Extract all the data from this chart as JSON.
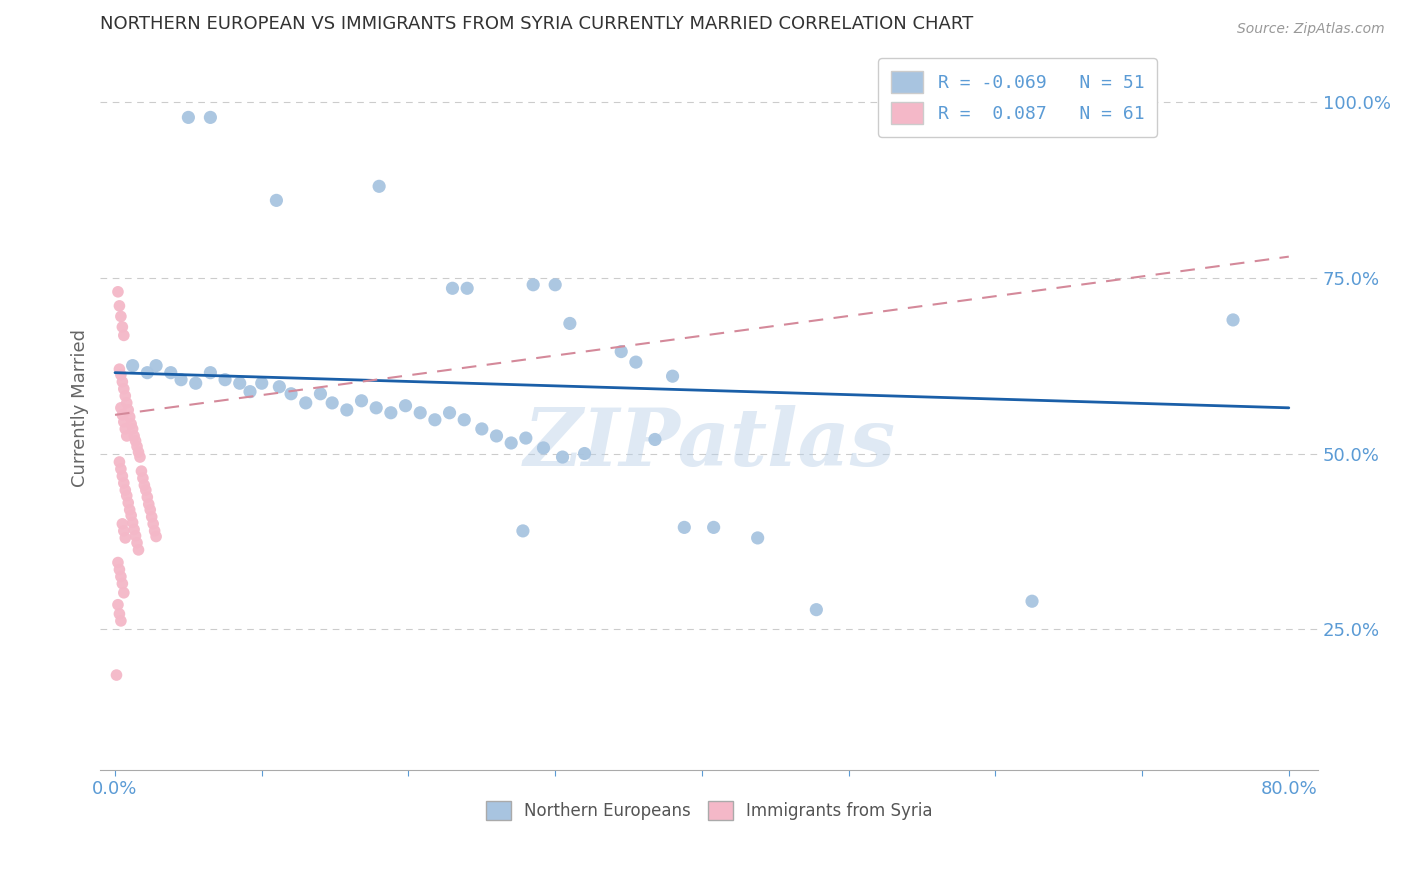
{
  "title": "NORTHERN EUROPEAN VS IMMIGRANTS FROM SYRIA CURRENTLY MARRIED CORRELATION CHART",
  "source": "Source: ZipAtlas.com",
  "ylabel": "Currently Married",
  "watermark": "ZIPatlas",
  "legend_r_blue": "R = -0.069",
  "legend_n_blue": "N = 51",
  "legend_r_pink": "R =  0.087",
  "legend_n_pink": "N = 61",
  "blue_color": "#a8c4e0",
  "pink_color": "#f4b8c8",
  "trendline_blue_color": "#1a5fa8",
  "trendline_pink_color": "#d4899a",
  "blue_trendline": [
    [
      0.0,
      0.615
    ],
    [
      0.8,
      0.565
    ]
  ],
  "pink_trendline": [
    [
      0.0,
      0.555
    ],
    [
      0.8,
      0.78
    ]
  ],
  "blue_scatter": [
    [
      0.05,
      0.978
    ],
    [
      0.065,
      0.978
    ],
    [
      0.11,
      0.86
    ],
    [
      0.18,
      0.88
    ],
    [
      0.23,
      0.735
    ],
    [
      0.24,
      0.735
    ],
    [
      0.285,
      0.74
    ],
    [
      0.3,
      0.74
    ],
    [
      0.31,
      0.685
    ],
    [
      0.345,
      0.645
    ],
    [
      0.355,
      0.63
    ],
    [
      0.38,
      0.61
    ],
    [
      0.012,
      0.625
    ],
    [
      0.022,
      0.615
    ],
    [
      0.028,
      0.625
    ],
    [
      0.038,
      0.615
    ],
    [
      0.045,
      0.605
    ],
    [
      0.055,
      0.6
    ],
    [
      0.065,
      0.615
    ],
    [
      0.075,
      0.605
    ],
    [
      0.085,
      0.6
    ],
    [
      0.092,
      0.588
    ],
    [
      0.1,
      0.6
    ],
    [
      0.112,
      0.595
    ],
    [
      0.12,
      0.585
    ],
    [
      0.13,
      0.572
    ],
    [
      0.14,
      0.585
    ],
    [
      0.148,
      0.572
    ],
    [
      0.158,
      0.562
    ],
    [
      0.168,
      0.575
    ],
    [
      0.178,
      0.565
    ],
    [
      0.188,
      0.558
    ],
    [
      0.198,
      0.568
    ],
    [
      0.208,
      0.558
    ],
    [
      0.218,
      0.548
    ],
    [
      0.228,
      0.558
    ],
    [
      0.238,
      0.548
    ],
    [
      0.25,
      0.535
    ],
    [
      0.26,
      0.525
    ],
    [
      0.27,
      0.515
    ],
    [
      0.28,
      0.522
    ],
    [
      0.292,
      0.508
    ],
    [
      0.305,
      0.495
    ],
    [
      0.32,
      0.5
    ],
    [
      0.368,
      0.52
    ],
    [
      0.388,
      0.395
    ],
    [
      0.408,
      0.395
    ],
    [
      0.438,
      0.38
    ],
    [
      0.278,
      0.39
    ],
    [
      0.478,
      0.278
    ],
    [
      0.625,
      0.29
    ],
    [
      0.762,
      0.69
    ]
  ],
  "pink_scatter": [
    [
      0.002,
      0.73
    ],
    [
      0.003,
      0.71
    ],
    [
      0.004,
      0.695
    ],
    [
      0.005,
      0.68
    ],
    [
      0.006,
      0.668
    ],
    [
      0.003,
      0.62
    ],
    [
      0.004,
      0.612
    ],
    [
      0.005,
      0.602
    ],
    [
      0.006,
      0.592
    ],
    [
      0.007,
      0.582
    ],
    [
      0.008,
      0.572
    ],
    [
      0.009,
      0.562
    ],
    [
      0.01,
      0.552
    ],
    [
      0.011,
      0.542
    ],
    [
      0.012,
      0.535
    ],
    [
      0.013,
      0.525
    ],
    [
      0.014,
      0.518
    ],
    [
      0.015,
      0.51
    ],
    [
      0.016,
      0.502
    ],
    [
      0.017,
      0.495
    ],
    [
      0.004,
      0.565
    ],
    [
      0.005,
      0.555
    ],
    [
      0.006,
      0.545
    ],
    [
      0.007,
      0.535
    ],
    [
      0.008,
      0.525
    ],
    [
      0.003,
      0.488
    ],
    [
      0.004,
      0.478
    ],
    [
      0.005,
      0.468
    ],
    [
      0.006,
      0.458
    ],
    [
      0.007,
      0.448
    ],
    [
      0.008,
      0.44
    ],
    [
      0.009,
      0.43
    ],
    [
      0.01,
      0.42
    ],
    [
      0.011,
      0.412
    ],
    [
      0.012,
      0.402
    ],
    [
      0.013,
      0.392
    ],
    [
      0.014,
      0.383
    ],
    [
      0.015,
      0.373
    ],
    [
      0.016,
      0.363
    ],
    [
      0.005,
      0.4
    ],
    [
      0.006,
      0.39
    ],
    [
      0.007,
      0.38
    ],
    [
      0.002,
      0.345
    ],
    [
      0.003,
      0.335
    ],
    [
      0.004,
      0.325
    ],
    [
      0.005,
      0.315
    ],
    [
      0.006,
      0.302
    ],
    [
      0.002,
      0.285
    ],
    [
      0.003,
      0.272
    ],
    [
      0.004,
      0.262
    ],
    [
      0.001,
      0.185
    ],
    [
      0.018,
      0.475
    ],
    [
      0.019,
      0.465
    ],
    [
      0.02,
      0.455
    ],
    [
      0.021,
      0.448
    ],
    [
      0.022,
      0.438
    ],
    [
      0.023,
      0.428
    ],
    [
      0.024,
      0.42
    ],
    [
      0.025,
      0.41
    ],
    [
      0.026,
      0.4
    ],
    [
      0.027,
      0.39
    ],
    [
      0.028,
      0.382
    ]
  ],
  "xlim": [
    -0.01,
    0.82
  ],
  "ylim": [
    0.05,
    1.08
  ],
  "xtick_positions": [
    0.0,
    0.1,
    0.2,
    0.3,
    0.4,
    0.5,
    0.6,
    0.7,
    0.8
  ],
  "xtick_labels": [
    "0.0%",
    "",
    "",
    "",
    "",
    "",
    "",
    "",
    "80.0%"
  ],
  "ytick_positions": [
    0.25,
    0.5,
    0.75,
    1.0
  ],
  "ytick_labels": [
    "25.0%",
    "50.0%",
    "75.0%",
    "100.0%"
  ],
  "grid_color": "#cccccc",
  "background_color": "#ffffff",
  "tick_color": "#5b9bd5",
  "title_color": "#333333",
  "source_color": "#999999"
}
